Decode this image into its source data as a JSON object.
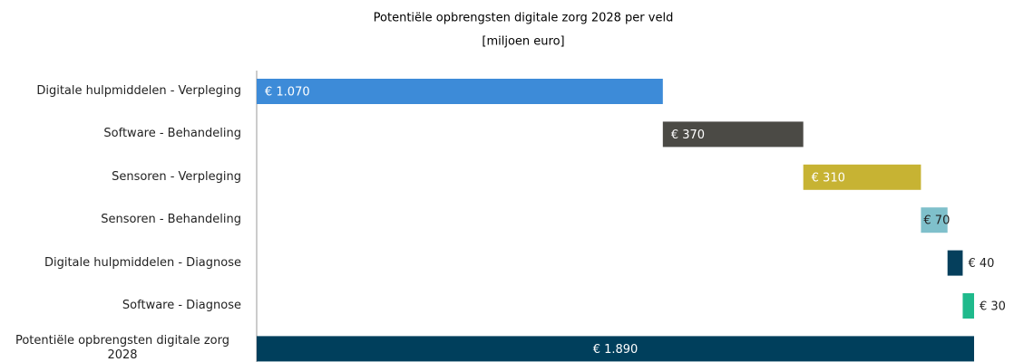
{
  "chart_data": {
    "type": "waterfall",
    "title": "Potentiële opbrengsten digitale zorg 2028 per veld",
    "subtitle": "[miljoen euro]",
    "categories": [
      "Digitale hulpmiddelen - Verpleging",
      "Software - Behandeling",
      "Sensoren - Verpleging",
      "Sensoren - Behandeling",
      "Digitale hulpmiddelen - Diagnose",
      "Software - Diagnose",
      "Potentiële opbrengsten digitale zorg 2028"
    ],
    "values": [
      1070,
      370,
      310,
      70,
      40,
      30,
      1890
    ],
    "value_labels": [
      "€ 1.070",
      "€ 370",
      "€ 310",
      "€ 70",
      "€ 40",
      "€ 30",
      "€ 1.890"
    ],
    "colors": [
      "#3d8bd8",
      "#4b4a45",
      "#c7b333",
      "#7fc0cb",
      "#053f5c",
      "#1fba8c",
      "#003f5c"
    ]
  }
}
